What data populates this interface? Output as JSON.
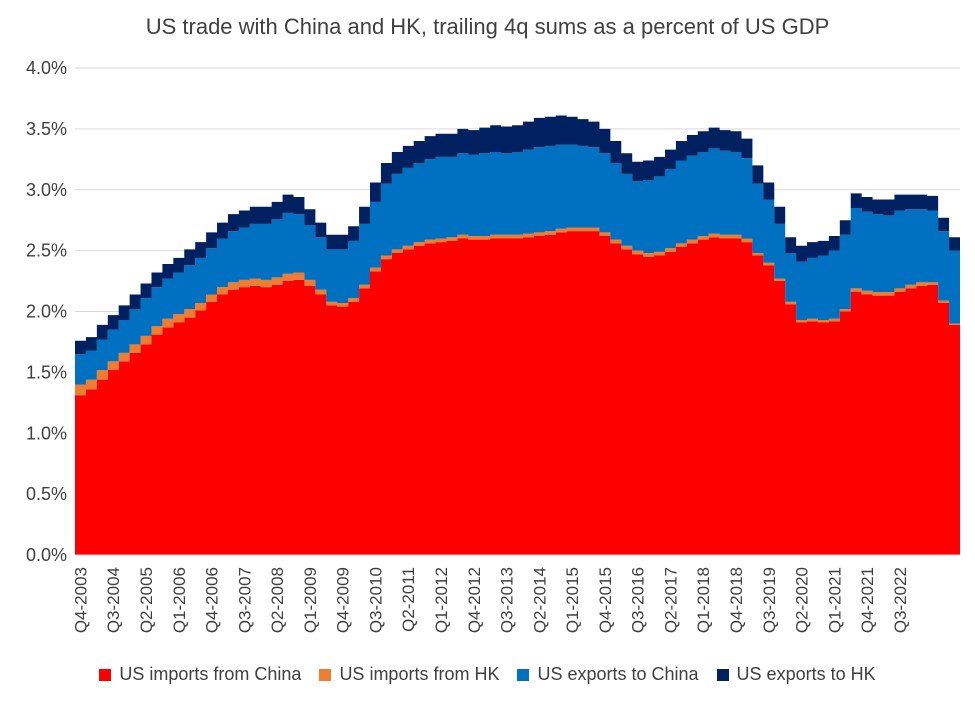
{
  "chart_data": {
    "type": "area",
    "stacked": true,
    "title": "US trade with China and HK, trailing 4q sums as a percent of US GDP",
    "ylim": [
      0,
      4.0
    ],
    "y_ticks": [
      "0.0%",
      "0.5%",
      "1.0%",
      "1.5%",
      "2.0%",
      "2.5%",
      "3.0%",
      "3.5%",
      "4.0%"
    ],
    "x_tick_labels": [
      "Q4-2003",
      "Q3-2004",
      "Q2-2005",
      "Q1-2006",
      "Q4-2006",
      "Q3-2007",
      "Q2-2008",
      "Q1-2009",
      "Q4-2009",
      "Q3-2010",
      "Q2-2011",
      "Q1-2012",
      "Q4-2012",
      "Q3-2013",
      "Q2-2014",
      "Q1-2015",
      "Q4-2015",
      "Q3-2016",
      "Q2-2017",
      "Q1-2018",
      "Q4-2018",
      "Q3-2019",
      "Q2-2020",
      "Q1-2021",
      "Q4-2021",
      "Q3-2022"
    ],
    "legend_position": "bottom",
    "grid": true,
    "start_quarter": "Q4-2003",
    "series": [
      {
        "name": "US imports from China",
        "color": "#FF0000",
        "values": [
          1.31,
          1.36,
          1.44,
          1.52,
          1.59,
          1.66,
          1.73,
          1.81,
          1.87,
          1.91,
          1.95,
          2.01,
          2.08,
          2.14,
          2.18,
          2.2,
          2.21,
          2.2,
          2.22,
          2.25,
          2.26,
          2.21,
          2.14,
          2.05,
          2.04,
          2.08,
          2.19,
          2.33,
          2.43,
          2.48,
          2.51,
          2.54,
          2.56,
          2.57,
          2.58,
          2.6,
          2.59,
          2.59,
          2.6,
          2.6,
          2.6,
          2.61,
          2.62,
          2.63,
          2.65,
          2.66,
          2.66,
          2.66,
          2.62,
          2.56,
          2.51,
          2.47,
          2.45,
          2.46,
          2.49,
          2.53,
          2.56,
          2.59,
          2.61,
          2.6,
          2.6,
          2.57,
          2.46,
          2.38,
          2.25,
          2.06,
          1.91,
          1.92,
          1.91,
          1.92,
          2.0,
          2.16,
          2.14,
          2.13,
          2.13,
          2.16,
          2.19,
          2.21,
          2.22,
          2.07,
          1.89
        ]
      },
      {
        "name": "US imports from HK",
        "color": "#ED7D31",
        "values": [
          0.09,
          0.08,
          0.08,
          0.07,
          0.07,
          0.07,
          0.07,
          0.07,
          0.07,
          0.07,
          0.07,
          0.06,
          0.06,
          0.06,
          0.06,
          0.06,
          0.06,
          0.06,
          0.06,
          0.06,
          0.06,
          0.05,
          0.04,
          0.03,
          0.03,
          0.03,
          0.03,
          0.03,
          0.03,
          0.03,
          0.03,
          0.03,
          0.03,
          0.03,
          0.03,
          0.03,
          0.03,
          0.03,
          0.03,
          0.03,
          0.03,
          0.03,
          0.03,
          0.03,
          0.03,
          0.03,
          0.03,
          0.03,
          0.03,
          0.03,
          0.03,
          0.03,
          0.03,
          0.03,
          0.03,
          0.03,
          0.03,
          0.03,
          0.03,
          0.03,
          0.03,
          0.03,
          0.02,
          0.02,
          0.02,
          0.02,
          0.02,
          0.02,
          0.02,
          0.02,
          0.02,
          0.03,
          0.03,
          0.03,
          0.03,
          0.03,
          0.03,
          0.03,
          0.02,
          0.02,
          0.01
        ]
      },
      {
        "name": "US exports to China",
        "color": "#0070C0",
        "values": [
          0.25,
          0.24,
          0.25,
          0.26,
          0.27,
          0.29,
          0.31,
          0.32,
          0.33,
          0.34,
          0.36,
          0.37,
          0.38,
          0.4,
          0.42,
          0.43,
          0.45,
          0.46,
          0.48,
          0.5,
          0.48,
          0.45,
          0.43,
          0.43,
          0.44,
          0.47,
          0.5,
          0.54,
          0.59,
          0.62,
          0.64,
          0.65,
          0.66,
          0.67,
          0.66,
          0.67,
          0.67,
          0.68,
          0.68,
          0.67,
          0.68,
          0.69,
          0.7,
          0.7,
          0.69,
          0.68,
          0.67,
          0.66,
          0.65,
          0.63,
          0.59,
          0.57,
          0.6,
          0.62,
          0.65,
          0.68,
          0.69,
          0.69,
          0.7,
          0.69,
          0.68,
          0.66,
          0.57,
          0.52,
          0.45,
          0.4,
          0.48,
          0.5,
          0.53,
          0.56,
          0.61,
          0.66,
          0.65,
          0.64,
          0.63,
          0.64,
          0.62,
          0.6,
          0.59,
          0.57,
          0.6
        ]
      },
      {
        "name": "US exports to HK",
        "color": "#002060",
        "values": [
          0.11,
          0.11,
          0.12,
          0.12,
          0.12,
          0.12,
          0.12,
          0.12,
          0.12,
          0.12,
          0.13,
          0.13,
          0.13,
          0.13,
          0.14,
          0.14,
          0.14,
          0.14,
          0.14,
          0.15,
          0.14,
          0.13,
          0.12,
          0.12,
          0.12,
          0.12,
          0.14,
          0.16,
          0.17,
          0.18,
          0.18,
          0.18,
          0.19,
          0.19,
          0.19,
          0.2,
          0.2,
          0.21,
          0.22,
          0.22,
          0.22,
          0.23,
          0.24,
          0.24,
          0.24,
          0.23,
          0.22,
          0.21,
          0.2,
          0.18,
          0.17,
          0.16,
          0.16,
          0.16,
          0.16,
          0.16,
          0.17,
          0.17,
          0.17,
          0.17,
          0.17,
          0.16,
          0.15,
          0.14,
          0.14,
          0.13,
          0.13,
          0.13,
          0.12,
          0.12,
          0.12,
          0.12,
          0.12,
          0.12,
          0.13,
          0.13,
          0.12,
          0.12,
          0.12,
          0.11,
          0.11
        ]
      }
    ]
  }
}
